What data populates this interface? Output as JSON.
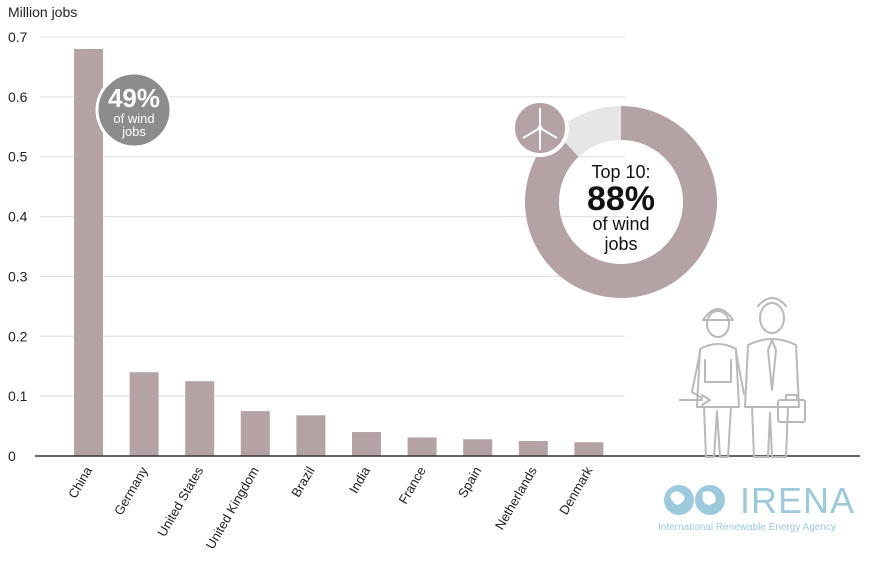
{
  "chart_data": {
    "type": "bar",
    "ylabel": "Million jobs",
    "ylim": [
      0,
      0.7
    ],
    "yticks": [
      "0",
      "0.1",
      "0.2",
      "0.3",
      "0.4",
      "0.5",
      "0.6",
      "0.7"
    ],
    "categories": [
      "China",
      "Germany",
      "United States",
      "United Kingdom",
      "Brazil",
      "India",
      "France",
      "Spain",
      "Netherlands",
      "Denmark"
    ],
    "values": [
      0.68,
      0.14,
      0.125,
      0.075,
      0.068,
      0.04,
      0.031,
      0.028,
      0.025,
      0.023
    ],
    "bar_color": "#b4a2a4",
    "grid": true
  },
  "china_callout": {
    "value": "49%",
    "line1": "of wind",
    "line2": "jobs",
    "color": "#8c8c8c"
  },
  "donut": {
    "share": 0.88,
    "top_label": "Top 10:",
    "value": "88%",
    "line1": "of wind",
    "line2": "jobs",
    "main_color": "#b4a2a4",
    "rest_color": "#e6e6e6",
    "icon": "wind-turbine-icon"
  },
  "logo": {
    "name": "IRENA",
    "subtitle": "International Renewable Energy Agency",
    "color": "#9cc9dc"
  },
  "illustration": {
    "icon": "workers-icon"
  }
}
